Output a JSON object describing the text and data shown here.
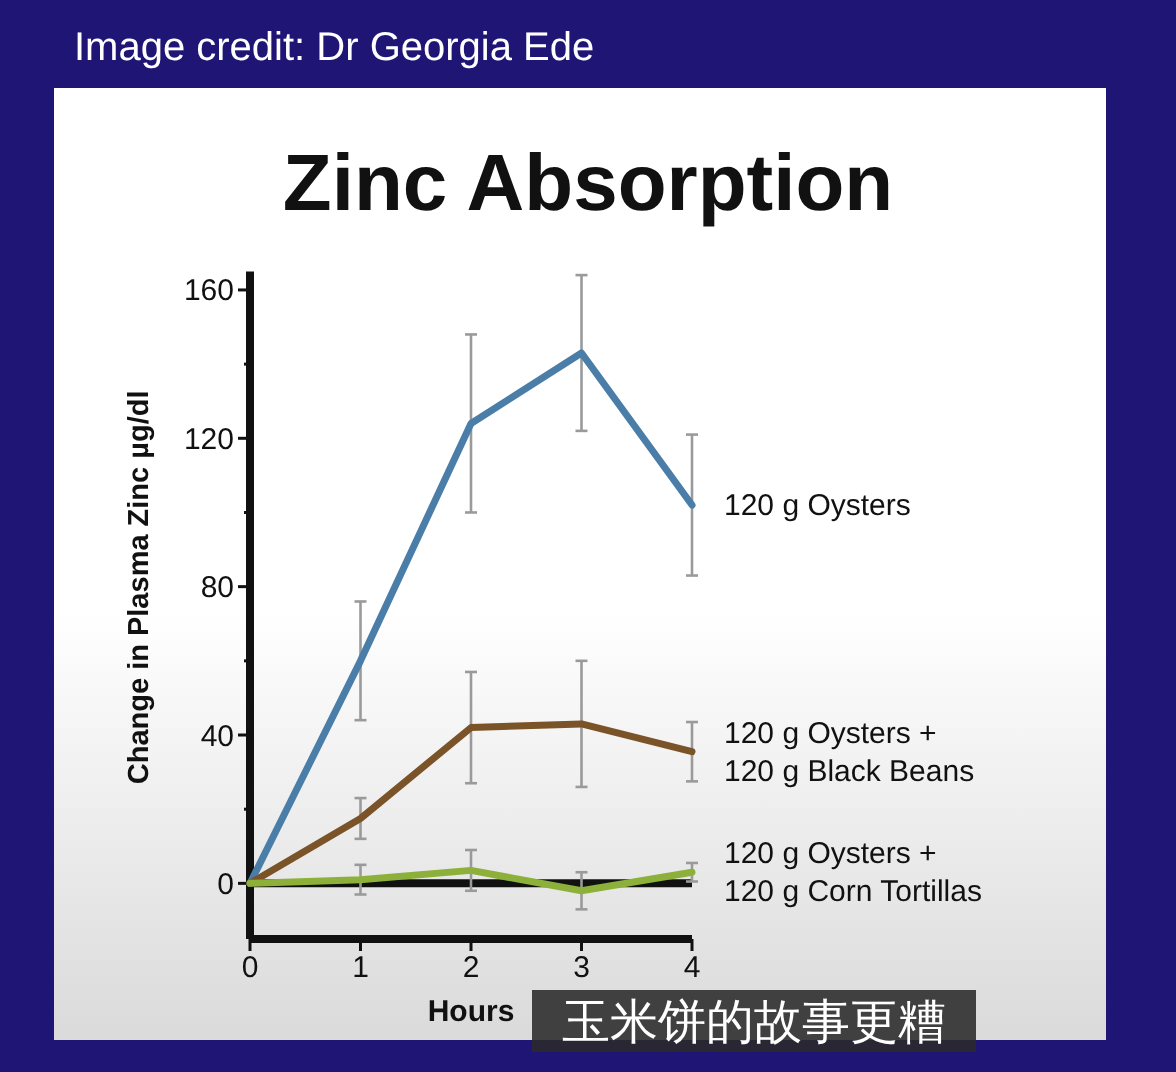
{
  "chart_data": {
    "type": "line",
    "title": "Zinc Absorption",
    "xlabel": "Hours",
    "ylabel": "Change in Plasma Zinc µg/dl",
    "annotations": [
      "Image credit: Dr Georgia Ede",
      "玉米饼的故事更糟"
    ],
    "x": [
      0,
      1,
      2,
      3,
      4
    ],
    "xlim": [
      0,
      4
    ],
    "xticks": [
      0,
      1,
      2,
      3,
      4
    ],
    "ylim": [
      -15,
      165
    ],
    "yticks": [
      0,
      {
        "value": 20,
        "label": null
      },
      40,
      {
        "value": 60,
        "label": null
      },
      80,
      {
        "value": 100,
        "label": null
      },
      120,
      {
        "value": 140,
        "label": null
      },
      160
    ],
    "ref_lines": [
      {
        "axis": "y",
        "value": 0,
        "color": "#111111"
      }
    ],
    "line_style": "solid",
    "series": [
      {
        "name": "120 g Oysters",
        "color": "#4a7ea8",
        "values": [
          0,
          60,
          124,
          143,
          102
        ],
        "errors": [
          null,
          16,
          24,
          21,
          19
        ]
      },
      {
        "name": "120 g Oysters +\n120 g Black Beans",
        "color": "#7a5328",
        "values": [
          0,
          17.5,
          42,
          43,
          35.5
        ],
        "errors": [
          null,
          5.5,
          15,
          17,
          8
        ]
      },
      {
        "name": "120 g Oysters +\n120 g Corn Tortillas",
        "color": "#8db03a",
        "values": [
          0,
          1,
          3.5,
          -2,
          3
        ],
        "errors": [
          null,
          4,
          5.5,
          5,
          2.5
        ]
      }
    ]
  }
}
